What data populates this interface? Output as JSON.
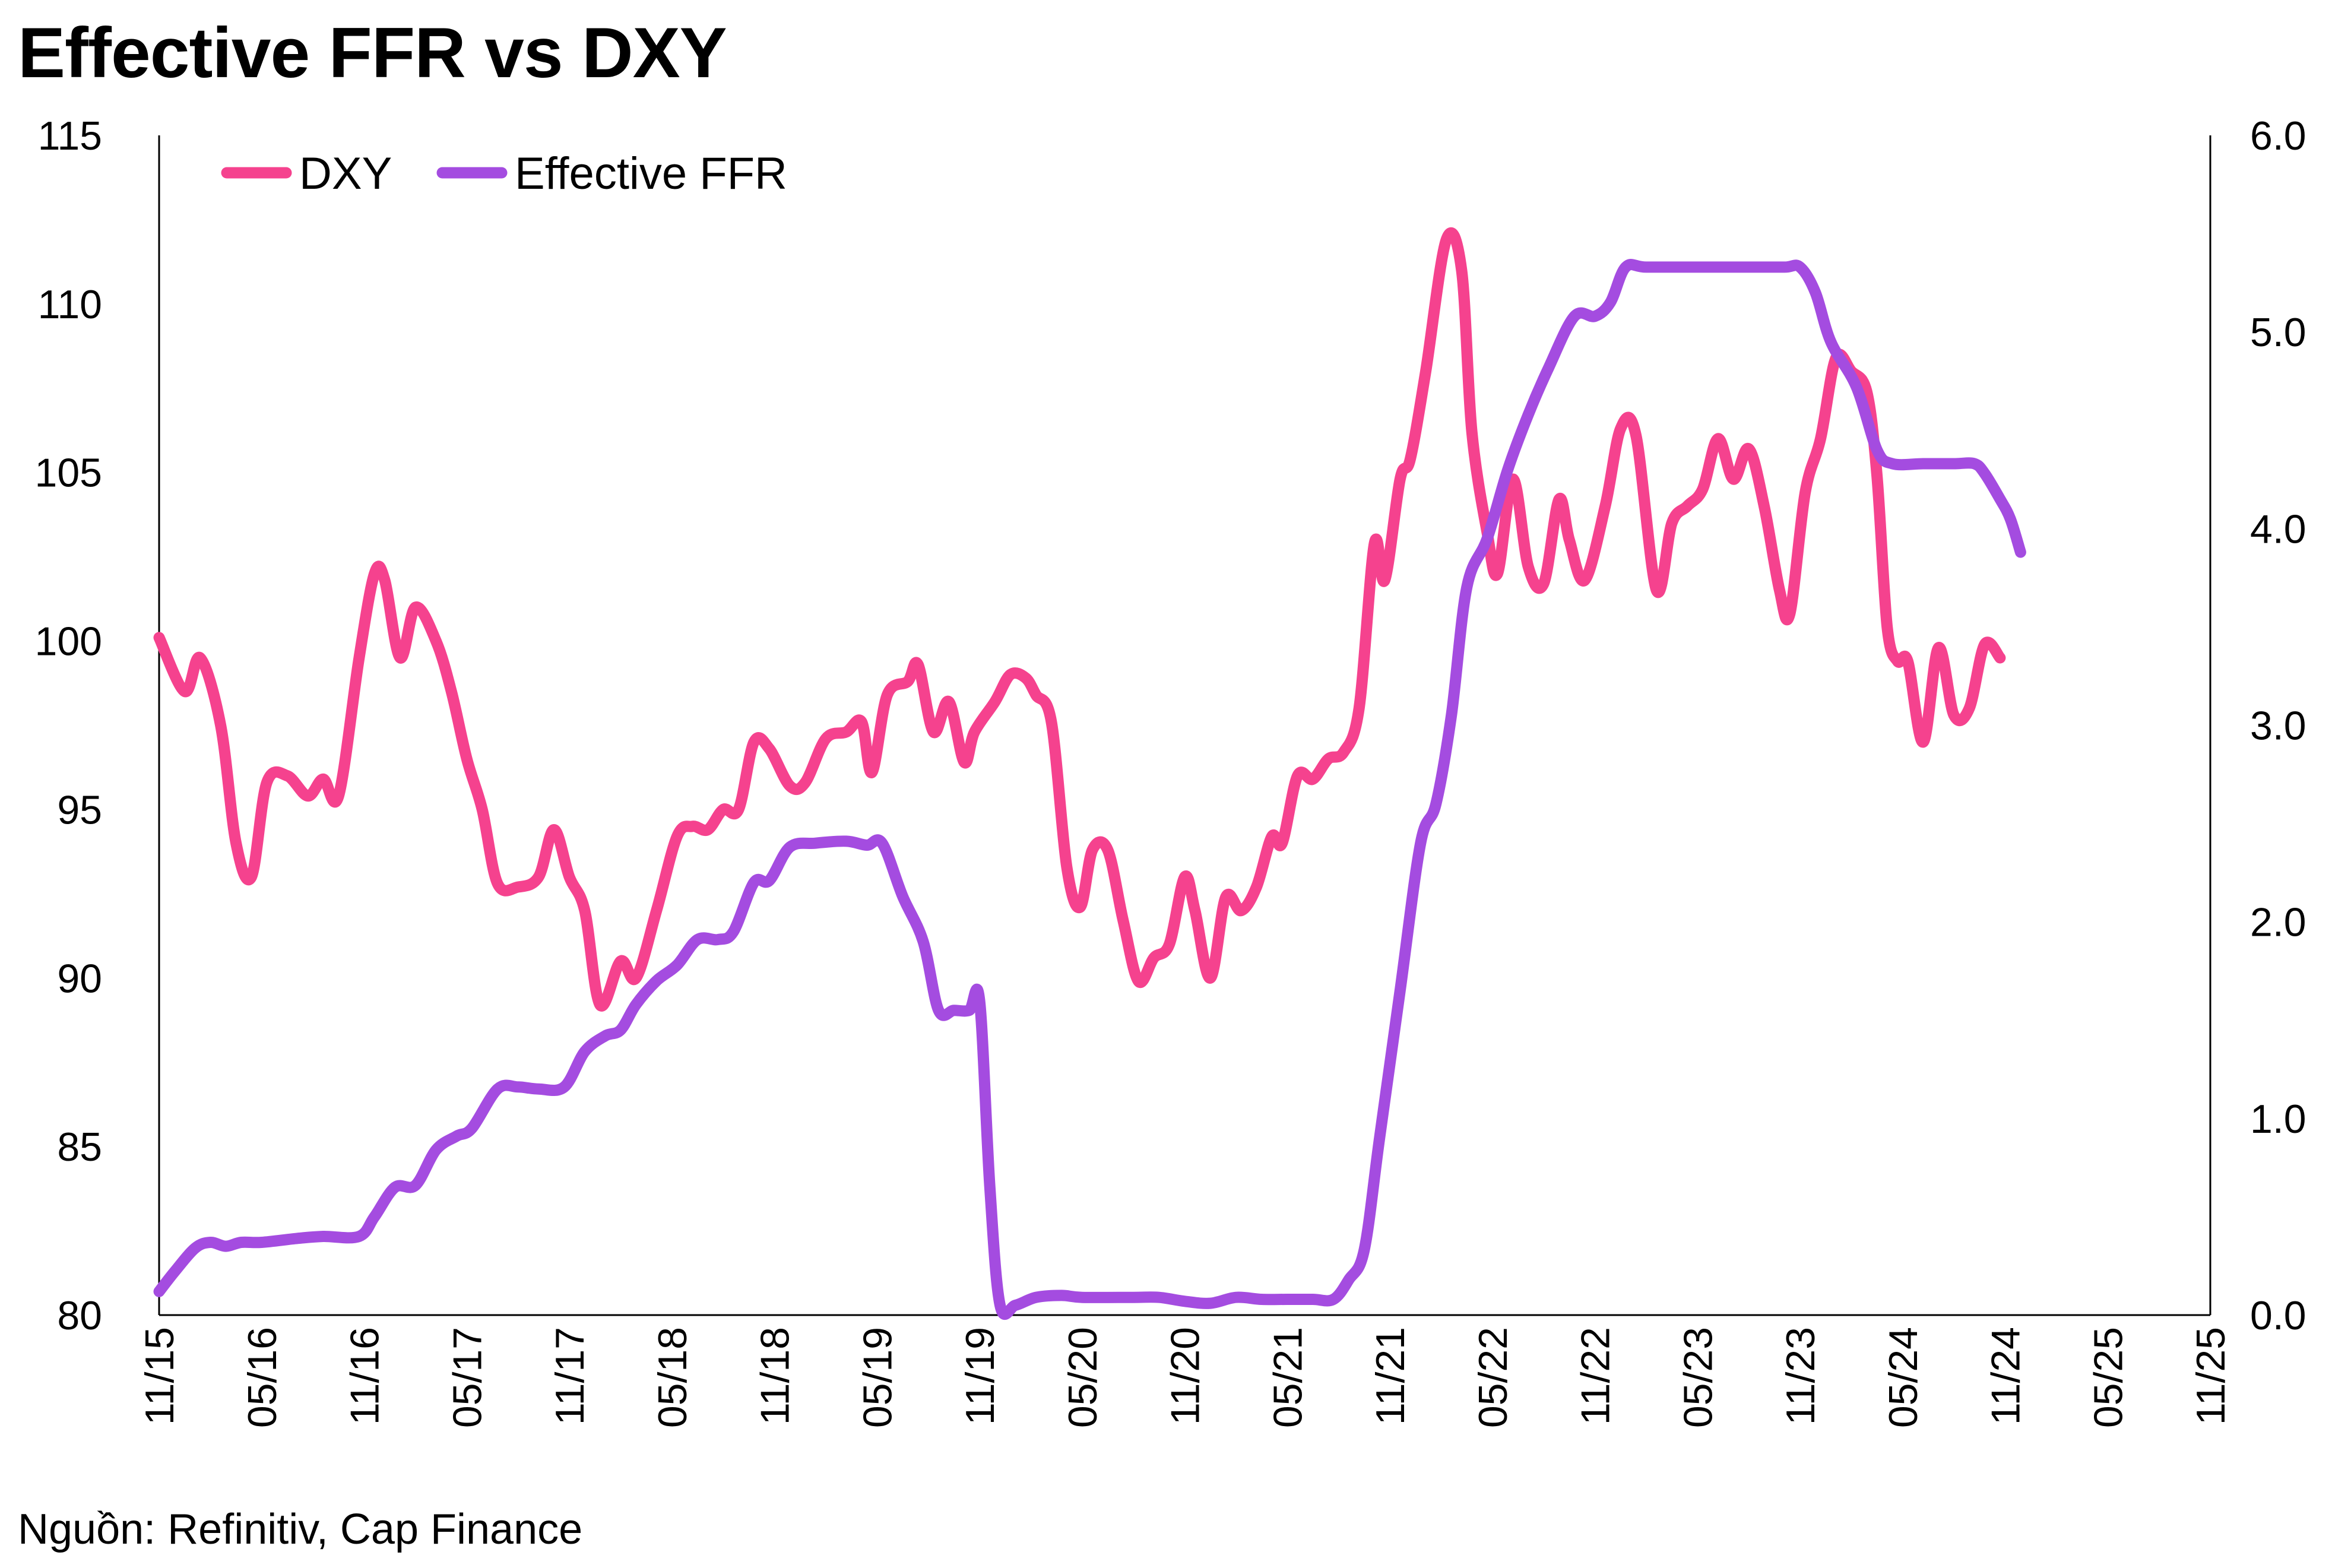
{
  "title": "Effective FFR vs DXY",
  "source": "Nguồn: Refinitiv, Cap Finance",
  "chart_data": {
    "type": "line",
    "title": "Effective FFR vs DXY",
    "legend_position": "top-left",
    "grid": false,
    "x_ticks": [
      "11/15",
      "05/16",
      "11/16",
      "05/17",
      "11/17",
      "05/18",
      "11/18",
      "05/19",
      "11/19",
      "05/20",
      "11/20",
      "05/21",
      "11/21",
      "05/22",
      "11/22",
      "05/23",
      "11/23",
      "05/24",
      "11/24",
      "05/25",
      "11/25"
    ],
    "y_left": {
      "ticks": [
        "80",
        "85",
        "90",
        "95",
        "100",
        "105",
        "110",
        "115"
      ],
      "lim": [
        80,
        115
      ]
    },
    "y_right": {
      "ticks": [
        "0.0",
        "1.0",
        "2.0",
        "3.0",
        "4.0",
        "5.0",
        "6.0"
      ],
      "lim": [
        0,
        6
      ]
    },
    "series": [
      {
        "name": "DXY",
        "axis": "left",
        "color": "#F5428E",
        "points": [
          [
            0,
            100.1
          ],
          [
            0.25,
            98.5
          ],
          [
            0.4,
            99.5
          ],
          [
            0.6,
            97.5
          ],
          [
            0.75,
            94
          ],
          [
            0.9,
            93
          ],
          [
            1.05,
            95.8
          ],
          [
            1.25,
            96.0
          ],
          [
            1.45,
            95.4
          ],
          [
            1.6,
            95.9
          ],
          [
            1.75,
            95.4
          ],
          [
            1.95,
            99.5
          ],
          [
            2.1,
            102.0
          ],
          [
            2.2,
            101.8
          ],
          [
            2.35,
            99.5
          ],
          [
            2.5,
            101.0
          ],
          [
            2.7,
            100.0
          ],
          [
            2.85,
            98.5
          ],
          [
            3.0,
            96.5
          ],
          [
            3.15,
            95.0
          ],
          [
            3.3,
            92.8
          ],
          [
            3.5,
            92.7
          ],
          [
            3.7,
            93.0
          ],
          [
            3.85,
            94.4
          ],
          [
            4.0,
            93.0
          ],
          [
            4.15,
            92.0
          ],
          [
            4.3,
            89.2
          ],
          [
            4.5,
            90.5
          ],
          [
            4.65,
            90.0
          ],
          [
            4.85,
            92.0
          ],
          [
            5.05,
            94.2
          ],
          [
            5.2,
            94.5
          ],
          [
            5.35,
            94.4
          ],
          [
            5.5,
            95.0
          ],
          [
            5.65,
            95.0
          ],
          [
            5.8,
            97.0
          ],
          [
            5.95,
            96.8
          ],
          [
            6.15,
            95.7
          ],
          [
            6.3,
            95.8
          ],
          [
            6.5,
            97.1
          ],
          [
            6.7,
            97.3
          ],
          [
            6.85,
            97.6
          ],
          [
            6.95,
            96.1
          ],
          [
            7.1,
            98.4
          ],
          [
            7.3,
            98.8
          ],
          [
            7.4,
            99.3
          ],
          [
            7.55,
            97.3
          ],
          [
            7.7,
            98.2
          ],
          [
            7.85,
            96.4
          ],
          [
            7.95,
            97.3
          ],
          [
            8.15,
            98.2
          ],
          [
            8.3,
            99.0
          ],
          [
            8.45,
            98.9
          ],
          [
            8.55,
            98.4
          ],
          [
            8.7,
            97.6
          ],
          [
            8.85,
            93.3
          ],
          [
            8.98,
            92.1
          ],
          [
            9.1,
            93.8
          ],
          [
            9.25,
            93.8
          ],
          [
            9.4,
            91.7
          ],
          [
            9.55,
            89.9
          ],
          [
            9.7,
            90.6
          ],
          [
            9.85,
            91.0
          ],
          [
            10.0,
            93.0
          ],
          [
            10.1,
            92.0
          ],
          [
            10.25,
            90.0
          ],
          [
            10.4,
            92.4
          ],
          [
            10.55,
            92.0
          ],
          [
            10.7,
            92.7
          ],
          [
            10.85,
            94.2
          ],
          [
            10.95,
            94.0
          ],
          [
            11.1,
            96.0
          ],
          [
            11.25,
            95.9
          ],
          [
            11.4,
            96.5
          ],
          [
            11.55,
            96.7
          ],
          [
            11.7,
            98.0
          ],
          [
            11.85,
            102.9
          ],
          [
            11.95,
            101.8
          ],
          [
            12.1,
            104.8
          ],
          [
            12.2,
            105.4
          ],
          [
            12.35,
            108.0
          ],
          [
            12.55,
            111.9
          ],
          [
            12.7,
            111.0
          ],
          [
            12.8,
            106.2
          ],
          [
            12.95,
            103.2
          ],
          [
            13.05,
            102.0
          ],
          [
            13.2,
            104.8
          ],
          [
            13.35,
            102.2
          ],
          [
            13.5,
            101.7
          ],
          [
            13.65,
            104.2
          ],
          [
            13.75,
            103.0
          ],
          [
            13.9,
            101.8
          ],
          [
            14.1,
            104.0
          ],
          [
            14.25,
            106.3
          ],
          [
            14.4,
            106.1
          ],
          [
            14.6,
            101.5
          ],
          [
            14.75,
            103.5
          ],
          [
            14.9,
            104.0
          ],
          [
            15.05,
            104.5
          ],
          [
            15.2,
            106.0
          ],
          [
            15.35,
            104.8
          ],
          [
            15.5,
            105.7
          ],
          [
            15.65,
            104.0
          ],
          [
            15.8,
            101.5
          ],
          [
            15.9,
            100.8
          ],
          [
            16.05,
            104.4
          ],
          [
            16.2,
            106.0
          ],
          [
            16.35,
            108.4
          ],
          [
            16.5,
            108.0
          ],
          [
            16.65,
            107.4
          ],
          [
            16.75,
            104.9
          ],
          [
            16.85,
            100.4
          ],
          [
            16.95,
            99.4
          ],
          [
            17.05,
            99.4
          ],
          [
            17.2,
            97.0
          ],
          [
            17.35,
            99.8
          ],
          [
            17.5,
            97.8
          ],
          [
            17.65,
            98.0
          ],
          [
            17.8,
            99.9
          ],
          [
            17.95,
            99.5
          ]
        ]
      },
      {
        "name": "Effective FFR",
        "axis": "right",
        "color": "#A44CE0",
        "points": [
          [
            0,
            0.12
          ],
          [
            0.15,
            0.22
          ],
          [
            0.35,
            0.34
          ],
          [
            0.5,
            0.37
          ],
          [
            0.65,
            0.35
          ],
          [
            0.8,
            0.37
          ],
          [
            1.0,
            0.37
          ],
          [
            1.35,
            0.39
          ],
          [
            1.6,
            0.4
          ],
          [
            1.95,
            0.4
          ],
          [
            2.1,
            0.5
          ],
          [
            2.3,
            0.65
          ],
          [
            2.5,
            0.66
          ],
          [
            2.7,
            0.84
          ],
          [
            2.9,
            0.91
          ],
          [
            3.05,
            0.95
          ],
          [
            3.3,
            1.15
          ],
          [
            3.5,
            1.16
          ],
          [
            3.7,
            1.15
          ],
          [
            3.95,
            1.16
          ],
          [
            4.15,
            1.34
          ],
          [
            4.35,
            1.42
          ],
          [
            4.5,
            1.45
          ],
          [
            4.65,
            1.58
          ],
          [
            4.85,
            1.7
          ],
          [
            5.05,
            1.78
          ],
          [
            5.25,
            1.91
          ],
          [
            5.45,
            1.91
          ],
          [
            5.6,
            1.95
          ],
          [
            5.8,
            2.2
          ],
          [
            5.95,
            2.21
          ],
          [
            6.15,
            2.38
          ],
          [
            6.4,
            2.4
          ],
          [
            6.7,
            2.41
          ],
          [
            6.9,
            2.39
          ],
          [
            7.05,
            2.4
          ],
          [
            7.25,
            2.13
          ],
          [
            7.45,
            1.9
          ],
          [
            7.6,
            1.55
          ],
          [
            7.75,
            1.55
          ],
          [
            7.9,
            1.55
          ],
          [
            8.0,
            1.6
          ],
          [
            8.1,
            0.65
          ],
          [
            8.2,
            0.05
          ],
          [
            8.35,
            0.05
          ],
          [
            8.55,
            0.09
          ],
          [
            8.8,
            0.1
          ],
          [
            9.0,
            0.09
          ],
          [
            9.5,
            0.09
          ],
          [
            9.75,
            0.09
          ],
          [
            10.0,
            0.07
          ],
          [
            10.25,
            0.06
          ],
          [
            10.5,
            0.09
          ],
          [
            10.75,
            0.08
          ],
          [
            11.0,
            0.08
          ],
          [
            11.25,
            0.08
          ],
          [
            11.45,
            0.08
          ],
          [
            11.6,
            0.18
          ],
          [
            11.75,
            0.33
          ],
          [
            11.9,
            0.9
          ],
          [
            12.1,
            1.65
          ],
          [
            12.3,
            2.4
          ],
          [
            12.45,
            2.6
          ],
          [
            12.6,
            3.05
          ],
          [
            12.75,
            3.7
          ],
          [
            12.95,
            3.95
          ],
          [
            13.15,
            4.3
          ],
          [
            13.35,
            4.58
          ],
          [
            13.55,
            4.82
          ],
          [
            13.8,
            5.08
          ],
          [
            14.0,
            5.08
          ],
          [
            14.15,
            5.15
          ],
          [
            14.3,
            5.33
          ],
          [
            14.5,
            5.33
          ],
          [
            15.0,
            5.33
          ],
          [
            15.5,
            5.33
          ],
          [
            15.85,
            5.33
          ],
          [
            16.0,
            5.33
          ],
          [
            16.15,
            5.2
          ],
          [
            16.3,
            4.95
          ],
          [
            16.55,
            4.72
          ],
          [
            16.75,
            4.4
          ],
          [
            16.9,
            4.33
          ],
          [
            17.2,
            4.33
          ],
          [
            17.5,
            4.33
          ],
          [
            17.7,
            4.33
          ],
          [
            17.8,
            4.28
          ],
          [
            17.95,
            4.15
          ],
          [
            18.05,
            4.05
          ],
          [
            18.15,
            3.88
          ]
        ]
      }
    ]
  }
}
